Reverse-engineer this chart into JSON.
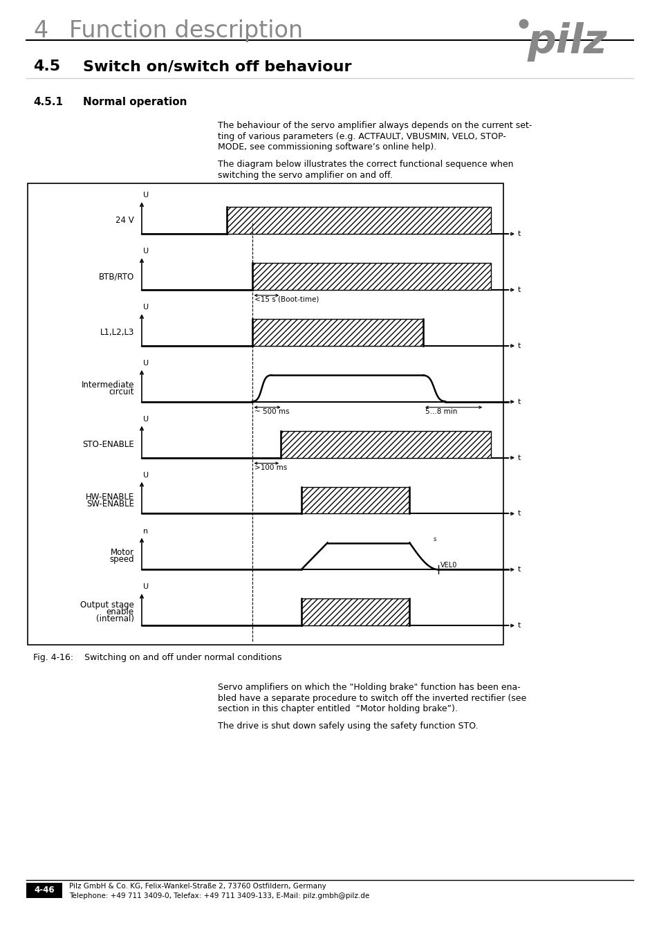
{
  "page_title_num": "4",
  "page_title_text": "Function description",
  "section_num": "4.5",
  "section_title": "Switch on/switch off behaviour",
  "subsection_num": "4.5.1",
  "subsection_title": "Normal operation",
  "para1_lines": [
    "The behaviour of the servo amplifier always depends on the current set-",
    "ting of various parameters (e.g. ACTFAULT, VBUSMIN, VELO, STOP-",
    "MODE, see commissioning software’s online help)."
  ],
  "para2_lines": [
    "The diagram below illustrates the correct functional sequence when",
    "switching the servo amplifier on and off."
  ],
  "fig_caption": "Fig. 4-16:    Switching on and off under normal conditions",
  "para3_lines": [
    "Servo amplifiers on which the \"Holding brake\" function has been ena-",
    "bled have a separate procedure to switch off the inverted rectifier (see",
    "section in this chapter entitled  “Motor holding brake”)."
  ],
  "para4": "The drive is shut down safely using the safety function STO.",
  "footer_page": "4-46",
  "footer_company": "Pilz GmbH & Co. KG, Felix-Wankel-Straße 2, 73760 Ostfildern, Germany",
  "footer_phone": "Telephone: +49 711 3409-0, Telefax: +49 711 3409-133, E-Mail: pilz.gmbh@pilz.de",
  "text_color": "#000000",
  "gray_color": "#888888"
}
